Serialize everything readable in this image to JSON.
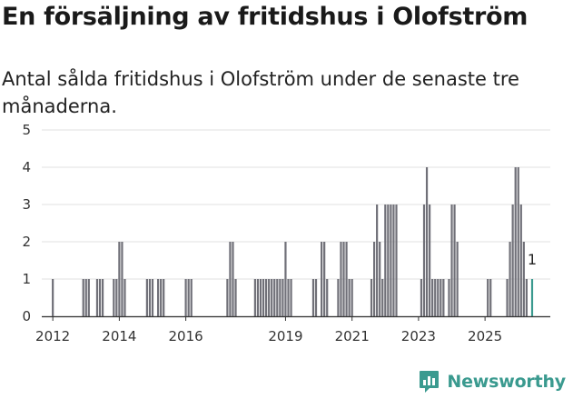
{
  "header": {
    "title": "En försäljning av fritidshus i Olofström",
    "subtitle": "Antal sålda fritidshus i Olofström under de senaste tre månaderna."
  },
  "brand": {
    "name": "Newsworthy",
    "color": "#3a9a8f"
  },
  "chart_data": {
    "type": "bar",
    "x_unit": "month",
    "x_start": "2011-10",
    "x_end": "2025-01",
    "values": [
      0,
      0,
      0,
      1,
      0,
      0,
      0,
      0,
      0,
      0,
      0,
      0,
      0,
      0,
      1,
      1,
      1,
      0,
      0,
      1,
      1,
      1,
      0,
      0,
      0,
      1,
      1,
      2,
      2,
      1,
      0,
      0,
      0,
      0,
      0,
      0,
      0,
      1,
      1,
      1,
      0,
      1,
      1,
      1,
      0,
      0,
      0,
      0,
      0,
      0,
      0,
      1,
      1,
      1,
      0,
      0,
      0,
      0,
      0,
      0,
      0,
      0,
      0,
      0,
      0,
      0,
      1,
      2,
      2,
      1,
      0,
      0,
      0,
      0,
      0,
      0,
      1,
      1,
      1,
      1,
      1,
      1,
      1,
      1,
      1,
      1,
      1,
      2,
      1,
      1,
      0,
      0,
      0,
      0,
      0,
      0,
      0,
      1,
      1,
      0,
      2,
      2,
      1,
      0,
      0,
      0,
      1,
      2,
      2,
      2,
      1,
      1,
      0,
      0,
      0,
      0,
      0,
      0,
      1,
      2,
      3,
      2,
      1,
      3,
      3,
      3,
      3,
      3,
      0,
      0,
      0,
      0,
      0,
      0,
      0,
      0,
      1,
      3,
      4,
      3,
      1,
      1,
      1,
      1,
      1,
      0,
      1,
      3,
      3,
      2,
      0,
      0,
      0,
      0,
      0,
      0,
      0,
      0,
      0,
      0,
      1,
      1,
      0,
      0,
      0,
      0,
      0,
      1,
      2,
      3,
      4,
      4,
      3,
      2,
      1,
      0,
      1
    ],
    "highlight_color": "#3a9a8f",
    "bar_color": "#707078",
    "x_ticks": [
      "2012",
      "2014",
      "2016",
      "2019",
      "2021",
      "2023",
      "2025"
    ],
    "y_ticks": [
      "0",
      "1",
      "2",
      "3",
      "4",
      "5"
    ],
    "ylim": [
      0,
      5
    ],
    "last_label": "1",
    "grid": true
  }
}
